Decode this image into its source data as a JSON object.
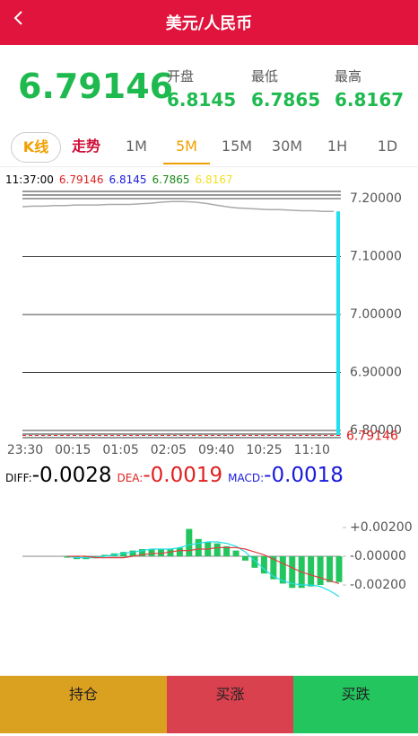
{
  "header": {
    "title": "美元/人民币"
  },
  "quote": {
    "price": "6.79146",
    "stats": [
      {
        "label": "开盘",
        "value": "6.8145"
      },
      {
        "label": "最低",
        "value": "6.7865"
      },
      {
        "label": "最高",
        "value": "6.8167"
      }
    ]
  },
  "tabs": [
    "K线",
    "走势",
    "1M",
    "5M",
    "15M",
    "30M",
    "1H",
    "1D"
  ],
  "info": {
    "time": "11:37:00",
    "values": [
      {
        "text": "6.79146",
        "color": "#e02020"
      },
      {
        "text": "6.8145",
        "color": "#1a1adc"
      },
      {
        "text": "6.7865",
        "color": "#1a8a1a"
      },
      {
        "text": "6.8167",
        "color": "#f0e020"
      }
    ]
  },
  "kline": {
    "yticks": [
      {
        "value": 7.2,
        "label": "7.20000"
      },
      {
        "value": 7.1,
        "label": "7.10000"
      },
      {
        "value": 7.0,
        "label": "7.00000"
      },
      {
        "value": 6.9,
        "label": "6.90000"
      },
      {
        "value": 6.8,
        "label": "6.80000"
      }
    ],
    "ylim": [
      6.79,
      7.2
    ],
    "current": {
      "value": 6.79146,
      "label": "6.79146"
    },
    "xlabels": [
      "23:30",
      "00:15",
      "01:05",
      "02:05",
      "09:40",
      "10:25",
      "11:10"
    ],
    "price": [
      7.186,
      7.187,
      7.187,
      7.188,
      7.188,
      7.189,
      7.189,
      7.189,
      7.19,
      7.19,
      7.19,
      7.191,
      7.192,
      7.194,
      7.195,
      7.195,
      7.194,
      7.192,
      7.189,
      7.186,
      7.184,
      7.183,
      7.182,
      7.181,
      7.181,
      7.18,
      7.179,
      7.179,
      7.178,
      7.178
    ],
    "last_candle": {
      "open": 7.178,
      "close": 6.79146
    }
  },
  "macd": {
    "legend": [
      {
        "name": "DIFF:",
        "value": "-0.0028",
        "color": "#000"
      },
      {
        "name": "DEA:",
        "value": "-0.0019",
        "color": "#e02020"
      },
      {
        "name": "MACD:",
        "value": "-0.0018",
        "color": "#1a1adc"
      }
    ],
    "yticks": [
      {
        "value": 0.002,
        "label": "+0.00200"
      },
      {
        "value": 0,
        "label": "-0.00000"
      },
      {
        "value": -0.002,
        "label": "-0.00200"
      }
    ],
    "histogram": [
      -0.0001,
      -0.0002,
      -0.0002,
      -0.0001,
      0.0001,
      0.0002,
      0.0003,
      0.0004,
      0.0005,
      0.0005,
      0.0005,
      0.0005,
      0.0006,
      0.0019,
      0.0012,
      0.001,
      0.0009,
      0.0007,
      0.0004,
      -0.0003,
      -0.0008,
      -0.0012,
      -0.0016,
      -0.0019,
      -0.0022,
      -0.0022,
      -0.0021,
      -0.002,
      -0.0018,
      -0.0018
    ],
    "diff": [
      0,
      -0.0001,
      -0.0001,
      -0.0001,
      0,
      0.0001,
      0.0002,
      0.0003,
      0.0004,
      0.0005,
      0.0005,
      0.0005,
      0.0006,
      0.0008,
      0.0009,
      0.001,
      0.001,
      0.0009,
      0.0007,
      0.0003,
      -0.0003,
      -0.0009,
      -0.0014,
      -0.0017,
      -0.0019,
      -0.002,
      -0.002,
      -0.0021,
      -0.0024,
      -0.0028
    ],
    "dea": [
      0,
      0,
      0,
      -0.0001,
      -0.0001,
      -0.0001,
      -0.0001,
      0,
      0.0001,
      0.0002,
      0.0002,
      0.0003,
      0.0004,
      0.0004,
      0.0005,
      0.0005,
      0.0006,
      0.0006,
      0.0006,
      0.0005,
      0.0003,
      0.0001,
      -0.0002,
      -0.0005,
      -0.0008,
      -0.0011,
      -0.0013,
      -0.0015,
      -0.0017,
      -0.0019
    ]
  },
  "actions": [
    {
      "label": "持仓",
      "color": "#daa020"
    },
    {
      "label": "买涨",
      "color": "#d9414f"
    },
    {
      "label": "买跌",
      "color": "#22c55e"
    }
  ]
}
